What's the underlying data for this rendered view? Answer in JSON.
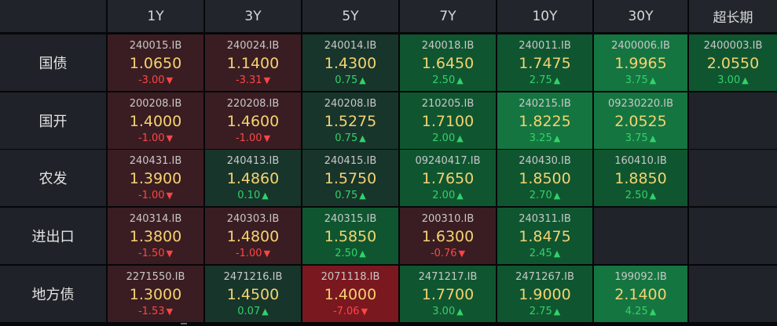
{
  "colors": {
    "background": "#050709",
    "header_bg": "#22262c",
    "row_header_bg": "#1f2228",
    "yield_text": "#f5d271",
    "code_text": "#c8c8c8",
    "down_color": "#ff4545",
    "up_color": "#33d16a",
    "down_bg": "#3a1d22",
    "strong_down_bg": "#7a1820",
    "mild_up_bg": "#18352b",
    "up_bg": "#0f5630",
    "strong_up_bg": "#157540",
    "empty_bg": "#202329"
  },
  "columns": [
    "1Y",
    "3Y",
    "5Y",
    "7Y",
    "10Y",
    "30Y",
    "超长期"
  ],
  "rows": [
    {
      "label": "国债",
      "cells": [
        {
          "code": "240015.IB",
          "yield": "1.0650",
          "change": "-3.00",
          "dir": "down",
          "tone": "down"
        },
        {
          "code": "240024.IB",
          "yield": "1.1400",
          "change": "-3.31",
          "dir": "down",
          "tone": "down"
        },
        {
          "code": "240014.IB",
          "yield": "1.4300",
          "change": "0.75",
          "dir": "up",
          "tone": "mild_up"
        },
        {
          "code": "240018.IB",
          "yield": "1.6450",
          "change": "2.50",
          "dir": "up",
          "tone": "up"
        },
        {
          "code": "240011.IB",
          "yield": "1.7475",
          "change": "2.75",
          "dir": "up",
          "tone": "up"
        },
        {
          "code": "2400006.IB",
          "yield": "1.9965",
          "change": "3.75",
          "dir": "up",
          "tone": "strong_up"
        },
        {
          "code": "2400003.IB",
          "yield": "2.0550",
          "change": "3.00",
          "dir": "up",
          "tone": "up"
        }
      ]
    },
    {
      "label": "国开",
      "cells": [
        {
          "code": "200208.IB",
          "yield": "1.4000",
          "change": "-1.00",
          "dir": "down",
          "tone": "down"
        },
        {
          "code": "220208.IB",
          "yield": "1.4600",
          "change": "-1.00",
          "dir": "down",
          "tone": "down"
        },
        {
          "code": "240208.IB",
          "yield": "1.5275",
          "change": "0.75",
          "dir": "up",
          "tone": "mild_up"
        },
        {
          "code": "210205.IB",
          "yield": "1.7100",
          "change": "2.00",
          "dir": "up",
          "tone": "up"
        },
        {
          "code": "240215.IB",
          "yield": "1.8225",
          "change": "3.25",
          "dir": "up",
          "tone": "strong_up"
        },
        {
          "code": "09230220.IB",
          "yield": "2.0525",
          "change": "3.75",
          "dir": "up",
          "tone": "strong_up"
        },
        null
      ]
    },
    {
      "label": "农发",
      "cells": [
        {
          "code": "240431.IB",
          "yield": "1.3900",
          "change": "-1.00",
          "dir": "down",
          "tone": "down"
        },
        {
          "code": "240413.IB",
          "yield": "1.4860",
          "change": "0.10",
          "dir": "up",
          "tone": "mild_up"
        },
        {
          "code": "240415.IB",
          "yield": "1.5750",
          "change": "0.75",
          "dir": "up",
          "tone": "mild_up"
        },
        {
          "code": "09240417.IB",
          "yield": "1.7650",
          "change": "2.00",
          "dir": "up",
          "tone": "up"
        },
        {
          "code": "240430.IB",
          "yield": "1.8500",
          "change": "2.70",
          "dir": "up",
          "tone": "up"
        },
        {
          "code": "160410.IB",
          "yield": "1.8850",
          "change": "2.50",
          "dir": "up",
          "tone": "up"
        },
        null
      ]
    },
    {
      "label": "进出口",
      "cells": [
        {
          "code": "240314.IB",
          "yield": "1.3800",
          "change": "-1.50",
          "dir": "down",
          "tone": "down"
        },
        {
          "code": "240303.IB",
          "yield": "1.4800",
          "change": "-1.00",
          "dir": "down",
          "tone": "down"
        },
        {
          "code": "240315.IB",
          "yield": "1.5850",
          "change": "2.50",
          "dir": "up",
          "tone": "up"
        },
        {
          "code": "200310.IB",
          "yield": "1.6300",
          "change": "-0.76",
          "dir": "down",
          "tone": "down"
        },
        {
          "code": "240311.IB",
          "yield": "1.8475",
          "change": "2.45",
          "dir": "up",
          "tone": "up"
        },
        null,
        null
      ]
    },
    {
      "label": "地方债",
      "cells": [
        {
          "code": "2271550.IB",
          "yield": "1.3000",
          "change": "-1.53",
          "dir": "down",
          "tone": "down"
        },
        {
          "code": "2471216.IB",
          "yield": "1.4500",
          "change": "0.07",
          "dir": "up",
          "tone": "mild_up"
        },
        {
          "code": "2071118.IB",
          "yield": "1.4000",
          "change": "-7.06",
          "dir": "down",
          "tone": "strong_down"
        },
        {
          "code": "2471217.IB",
          "yield": "1.7700",
          "change": "3.00",
          "dir": "up",
          "tone": "up"
        },
        {
          "code": "2471267.IB",
          "yield": "1.9000",
          "change": "2.75",
          "dir": "up",
          "tone": "up"
        },
        {
          "code": "199092.IB",
          "yield": "2.1400",
          "change": "4.25",
          "dir": "up",
          "tone": "strong_up"
        },
        null
      ]
    }
  ]
}
